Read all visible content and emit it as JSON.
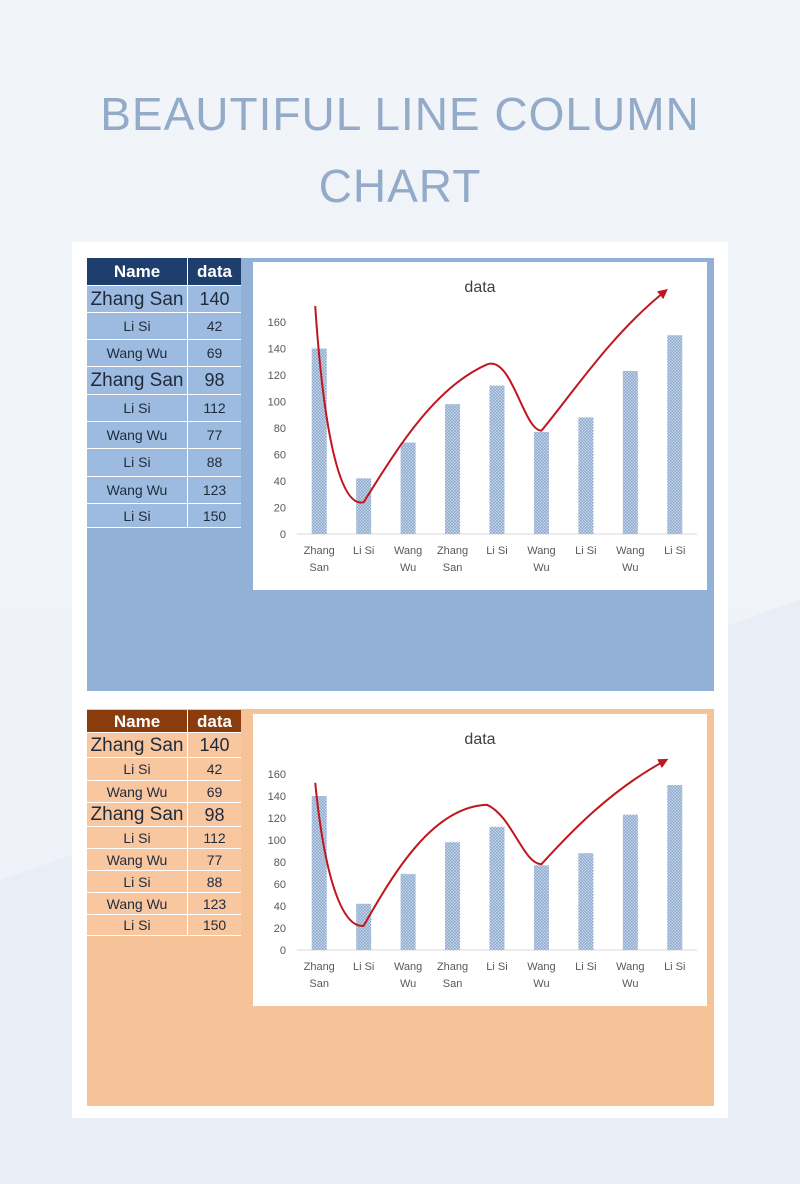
{
  "page": {
    "title_line1": "BEAUTIFUL LINE COLUMN",
    "title_line2": "CHART"
  },
  "tables": [
    {
      "headers": [
        "Name",
        "data"
      ],
      "rows": [
        {
          "name": "Zhang San",
          "value": "140"
        },
        {
          "name": "Li Si",
          "value": "42"
        },
        {
          "name": "Wang Wu",
          "value": "69"
        },
        {
          "name": "Zhang San",
          "value": "98"
        },
        {
          "name": "Li Si",
          "value": "112"
        },
        {
          "name": "Wang Wu",
          "value": "77"
        },
        {
          "name": "Li Si",
          "value": "88"
        },
        {
          "name": "Wang Wu",
          "value": "123"
        },
        {
          "name": "Li Si",
          "value": "150"
        }
      ]
    },
    {
      "headers": [
        "Name",
        "data"
      ],
      "rows": [
        {
          "name": "Zhang San",
          "value": "140"
        },
        {
          "name": "Li Si",
          "value": "42"
        },
        {
          "name": "Wang Wu",
          "value": "69"
        },
        {
          "name": "Zhang San",
          "value": "98"
        },
        {
          "name": "Li Si",
          "value": "112"
        },
        {
          "name": "Wang Wu",
          "value": "77"
        },
        {
          "name": "Li Si",
          "value": "88"
        },
        {
          "name": "Wang Wu",
          "value": "123"
        },
        {
          "name": "Li Si",
          "value": "150"
        }
      ]
    }
  ],
  "colors": {
    "blue_panel": "#93b1d6",
    "orange_panel": "#f6c399",
    "blue_header": "#1e3f6e",
    "orange_header": "#8a3c0c",
    "bar": "#8aa8cc",
    "trend": "#c0161e",
    "title": "#93abc9"
  },
  "chart_data": [
    {
      "type": "bar",
      "title": "data",
      "categories": [
        [
          "Zhang",
          "San"
        ],
        [
          "Li Si"
        ],
        [
          "Wang",
          "Wu"
        ],
        [
          "Zhang",
          "San"
        ],
        [
          "Li Si"
        ],
        [
          "Wang",
          "Wu"
        ],
        [
          "Li Si"
        ],
        [
          "Wang",
          "Wu"
        ],
        [
          "Li Si"
        ]
      ],
      "series": [
        {
          "values": [
            140,
            42,
            69,
            98,
            112,
            77,
            88,
            123,
            150
          ]
        }
      ],
      "ylim": [
        0,
        160
      ],
      "yticks": [
        "0",
        "20",
        "40",
        "60",
        "80",
        "100",
        "120",
        "140",
        "160"
      ],
      "grid": false,
      "legend": "none",
      "annotation": "hand-drawn red trend curve with arrowhead at top-right"
    },
    {
      "type": "bar",
      "title": "data",
      "categories": [
        [
          "Zhang",
          "San"
        ],
        [
          "Li Si"
        ],
        [
          "Wang",
          "Wu"
        ],
        [
          "Zhang",
          "San"
        ],
        [
          "Li Si"
        ],
        [
          "Wang",
          "Wu"
        ],
        [
          "Li Si"
        ],
        [
          "Wang",
          "Wu"
        ],
        [
          "Li Si"
        ]
      ],
      "series": [
        {
          "values": [
            140,
            42,
            69,
            98,
            112,
            77,
            88,
            123,
            150
          ]
        }
      ],
      "ylim": [
        0,
        160
      ],
      "yticks": [
        "0",
        "20",
        "40",
        "60",
        "80",
        "100",
        "120",
        "140",
        "160"
      ],
      "grid": false,
      "legend": "none",
      "annotation": "hand-drawn red trend curve with arrowhead at top-right"
    }
  ]
}
